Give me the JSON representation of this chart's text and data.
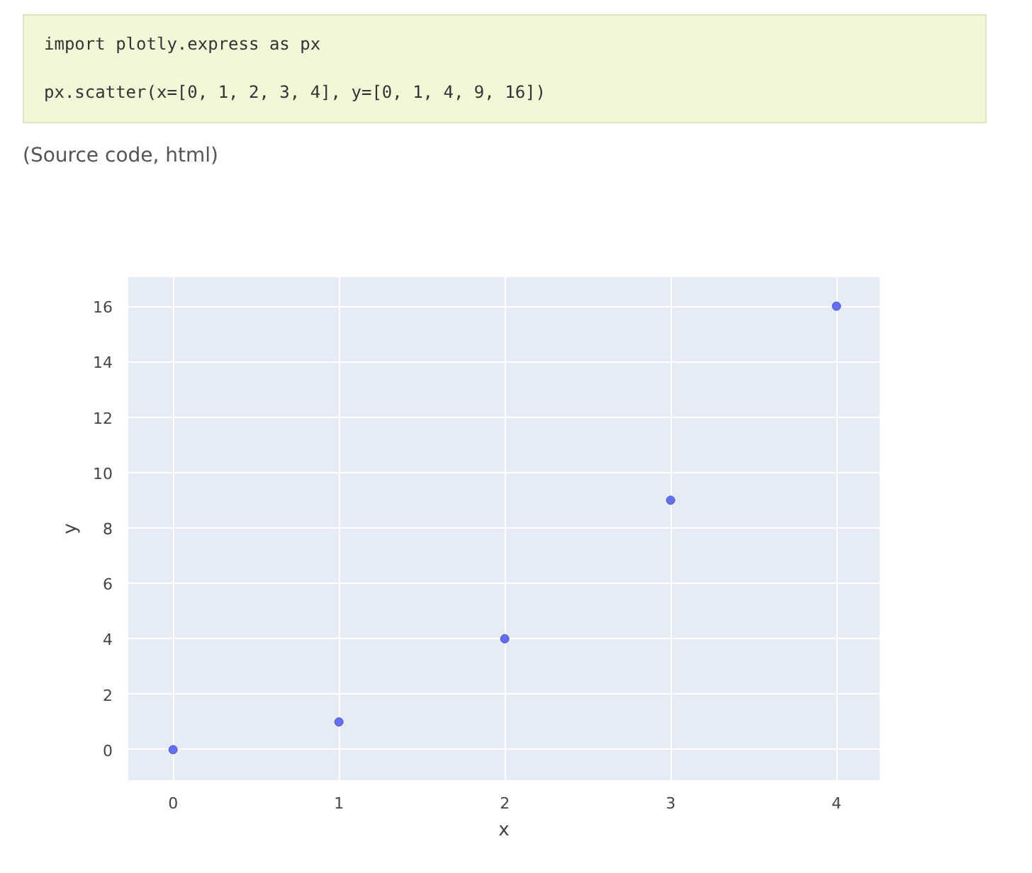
{
  "chart_data": {
    "type": "scatter",
    "xlabel": "x",
    "ylabel": "y",
    "annotations": [
      "import plotly.express as px",
      "px.scatter(x=[0, 1, 2, 3, 4], y=[0, 1, 4, 9, 16])",
      "(Source code, html)"
    ],
    "x": [
      0,
      1,
      2,
      3,
      4
    ],
    "series": [
      {
        "color": "#636efa",
        "values": [
          0,
          1,
          4,
          9,
          16
        ]
      }
    ],
    "xlim": [
      -0.27,
      4.26
    ],
    "ylim": [
      -1.1,
      17.05
    ],
    "xticks": [
      0,
      1,
      2,
      3,
      4
    ],
    "yticks": [
      0,
      2,
      4,
      6,
      8,
      10,
      12,
      14,
      16
    ],
    "grid": true,
    "marker": "circle"
  }
}
